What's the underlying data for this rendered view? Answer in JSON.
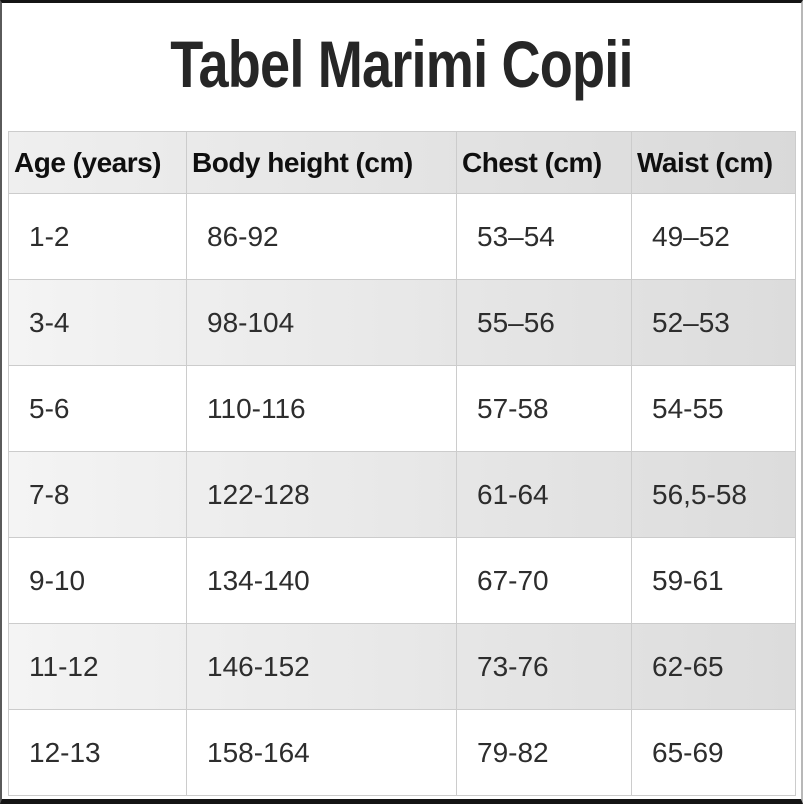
{
  "title": "Tabel Marimi Copii",
  "chart_data": {
    "type": "table",
    "title": "Tabel Marimi Copii",
    "columns": [
      "Age (years)",
      "Body height (cm)",
      "Chest (cm)",
      "Waist (cm)"
    ],
    "rows": [
      [
        "1-2",
        "86-92",
        "53–54",
        "49–52"
      ],
      [
        "3-4",
        "98-104",
        "55–56",
        "52–53"
      ],
      [
        "5-6",
        "110-116",
        "57-58",
        "54-55"
      ],
      [
        "7-8",
        "122-128",
        "61-64",
        "56,5-58"
      ],
      [
        "9-10",
        "134-140",
        "67-70",
        "59-61"
      ],
      [
        "11-12",
        "146-152",
        "73-76",
        "62-65"
      ],
      [
        "12-13",
        "158-164",
        "79-82",
        "65-69"
      ]
    ],
    "layout_hints": {
      "header_row": true,
      "striped_rows": "rows 2,4,6 shaded gray with left-to-right darkening gradient",
      "grid": true
    }
  },
  "colors": {
    "title_text": "#262626",
    "header_bg_left": "#efefef",
    "header_bg_right": "#d9d9d9",
    "stripe_bg_left": "#f4f4f4",
    "stripe_bg_right": "#dcdcdc",
    "row_bg": "#ffffff",
    "cell_border": "#cccccc",
    "frame_border": "#141414",
    "cell_text": "#2d2d2d"
  }
}
